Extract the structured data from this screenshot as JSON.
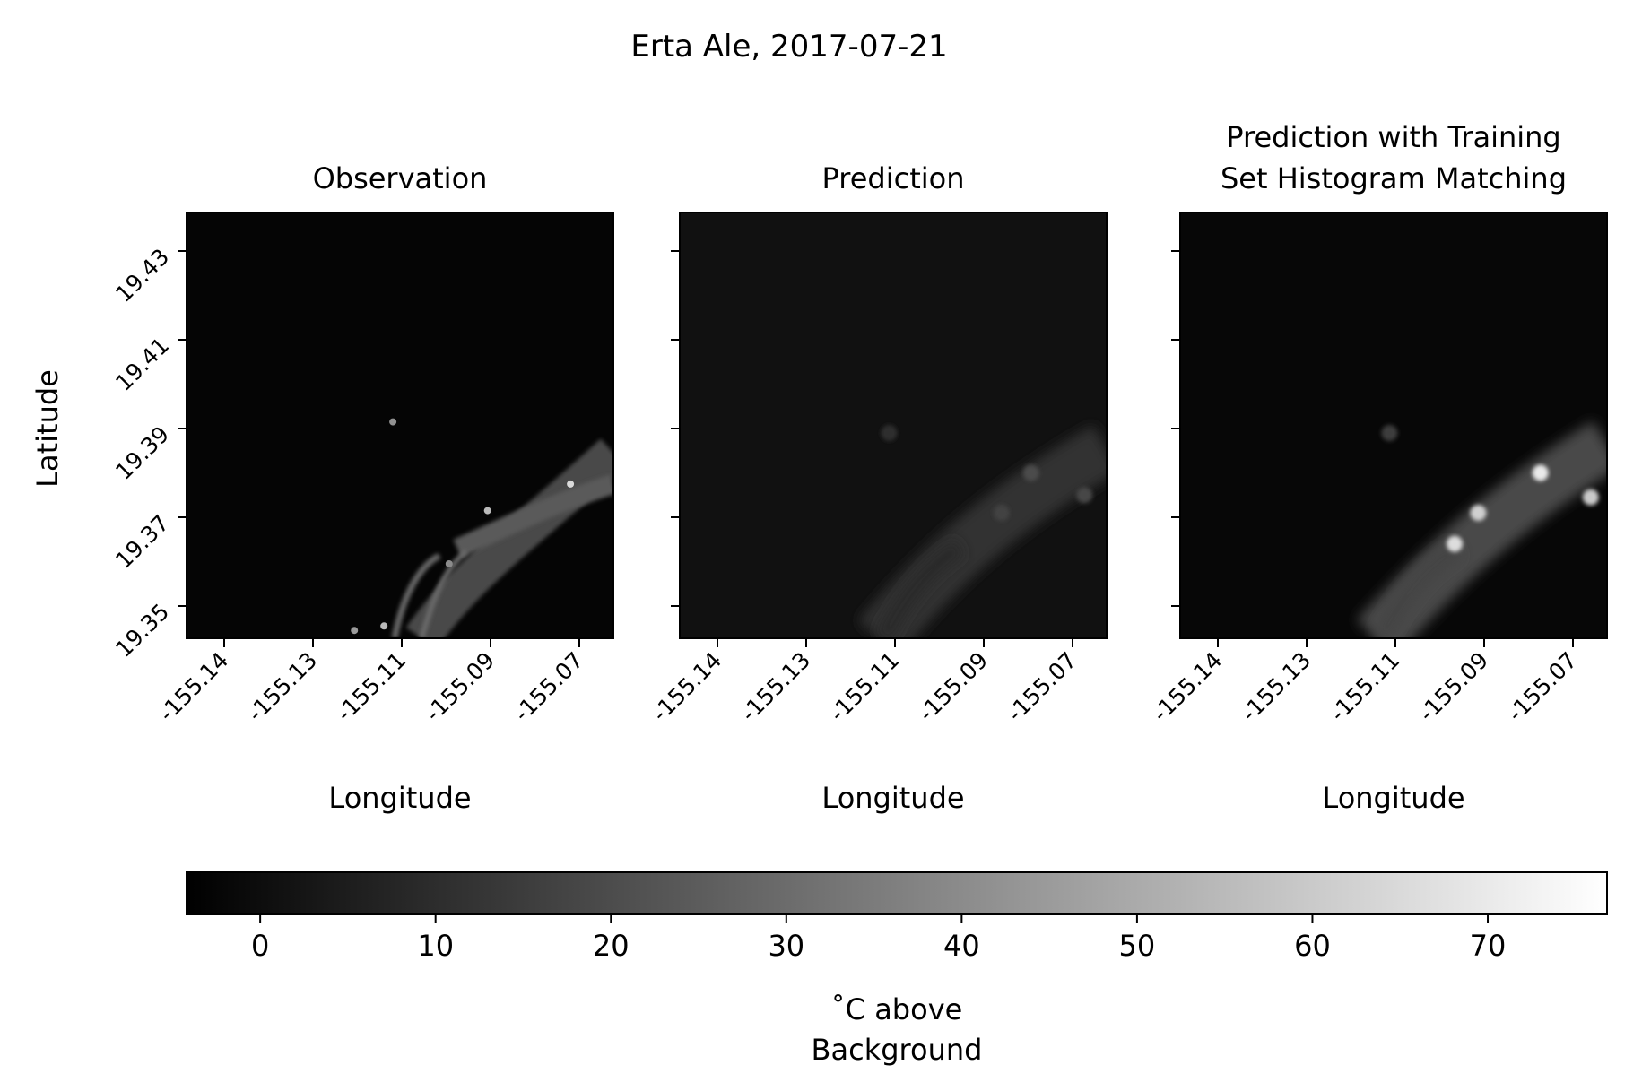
{
  "chart_data": {
    "type": "heatmap",
    "title": "Erta Ale, 2017-07-21",
    "colormap": "gray",
    "panels": [
      {
        "title": "Observation",
        "xlabel": "Longitude",
        "ylabel": "Latitude",
        "hotspots": [
          {
            "lon": -155.1115,
            "lat": 19.3915,
            "value": 42
          },
          {
            "lon": -155.0955,
            "lat": 19.3715,
            "value": 55
          },
          {
            "lon": -155.0815,
            "lat": 19.3775,
            "value": 65
          },
          {
            "lon": -155.0725,
            "lat": 19.378,
            "value": 60
          },
          {
            "lon": -155.102,
            "lat": 19.3595,
            "value": 40
          },
          {
            "lon": -155.113,
            "lat": 19.3455,
            "value": 55
          },
          {
            "lon": -155.118,
            "lat": 19.3445,
            "value": 45
          }
        ]
      },
      {
        "title": "Prediction",
        "xlabel": "Longitude",
        "ylabel": "",
        "hotspots": [
          {
            "lon": -155.111,
            "lat": 19.389,
            "value": 10
          },
          {
            "lon": -155.087,
            "lat": 19.38,
            "value": 20
          },
          {
            "lon": -155.078,
            "lat": 19.375,
            "value": 18
          },
          {
            "lon": -155.092,
            "lat": 19.371,
            "value": 17
          }
        ]
      },
      {
        "title": "Prediction with Training Set Histogram Matching",
        "xlabel": "Longitude",
        "ylabel": "",
        "hotspots": [
          {
            "lon": -155.111,
            "lat": 19.389,
            "value": 15
          },
          {
            "lon": -155.0855,
            "lat": 19.38,
            "value": 70
          },
          {
            "lon": -155.077,
            "lat": 19.3745,
            "value": 60
          },
          {
            "lon": -155.096,
            "lat": 19.371,
            "value": 62
          },
          {
            "lon": -155.1,
            "lat": 19.364,
            "value": 66
          }
        ]
      }
    ],
    "x_ticks": [
      "-155.14",
      "-155.13",
      "-155.11",
      "-155.09",
      "-155.07"
    ],
    "y_ticks": [
      "19.43",
      "19.41",
      "19.39",
      "19.37",
      "19.35"
    ],
    "colorbar": {
      "ticks": [
        "0",
        "10",
        "20",
        "30",
        "40",
        "50",
        "60",
        "70"
      ],
      "range": [
        -4.2,
        76.8
      ],
      "label_line1": "˚C above",
      "label_line2": "Background"
    }
  }
}
